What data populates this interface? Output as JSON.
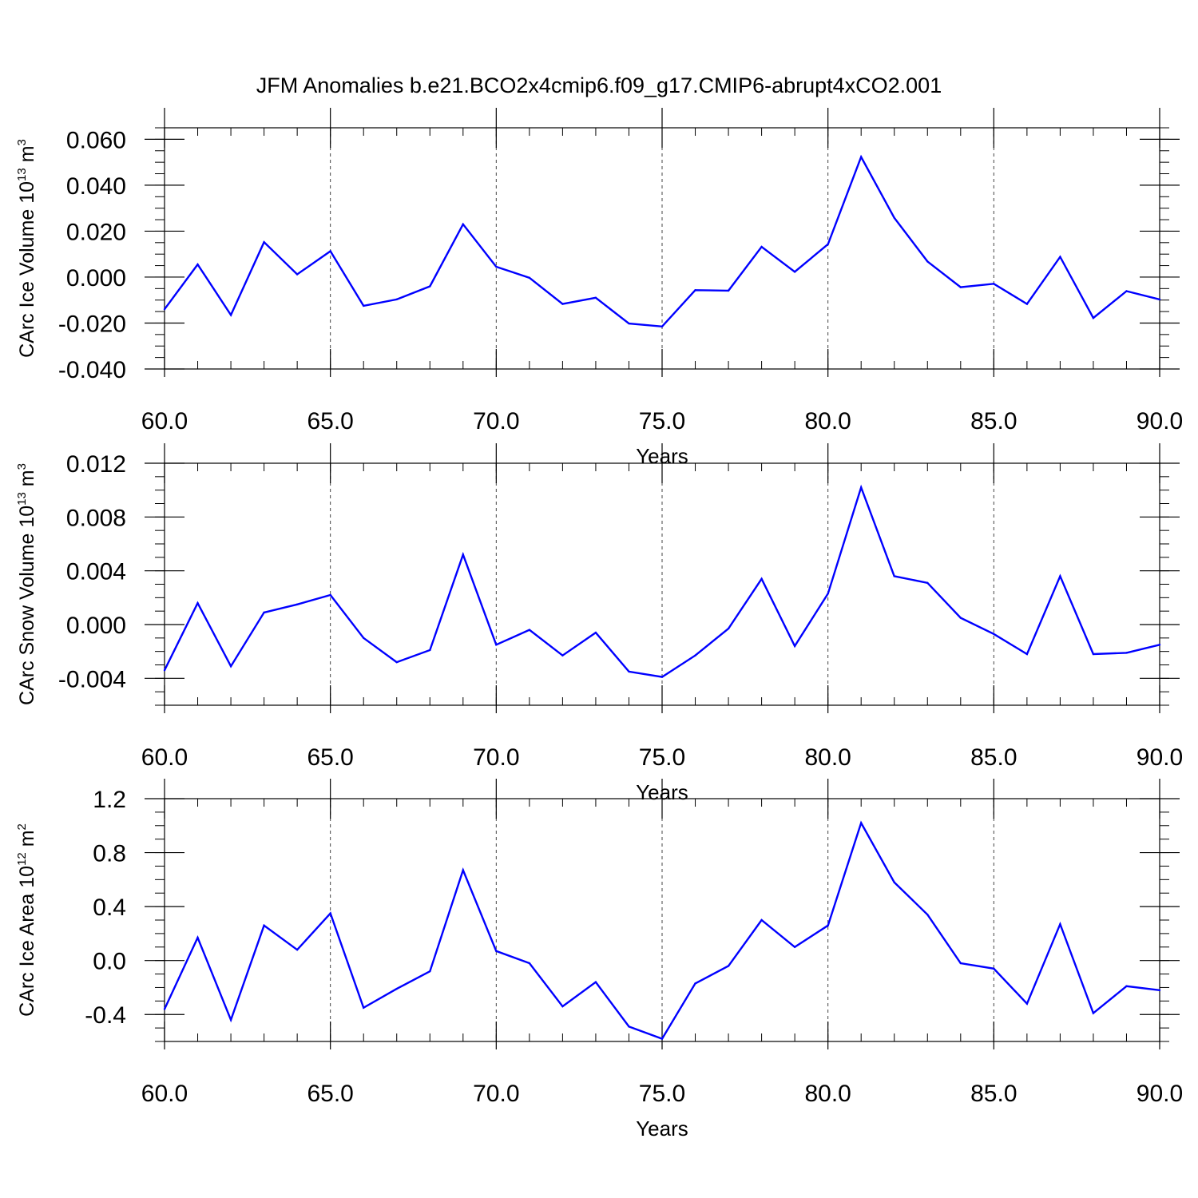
{
  "title": "JFM Anomalies b.e21.BCO2x4cmip6.f09_g17.CMIP6-abrupt4xCO2.001",
  "colors": {
    "series": "#0000ff",
    "axis": "#000000",
    "grid": "#444444"
  },
  "chart_data": [
    {
      "type": "line",
      "name": "ice-volume",
      "ylabel_main": "CArc Ice Volume 10",
      "ylabel_exp": "13",
      "ylabel_unit": " m",
      "ylabel_unit_exp": "3",
      "xlabel": "Years",
      "xlim": [
        60,
        90
      ],
      "ylim": [
        -0.04,
        0.065
      ],
      "yticks": [
        -0.04,
        -0.02,
        0.0,
        0.02,
        0.04,
        0.06
      ],
      "ytick_labels": [
        "-0.040",
        "-0.020",
        "0.000",
        "0.020",
        "0.040",
        "0.060"
      ],
      "yminor_step": 0.005,
      "xticks": [
        60,
        65,
        70,
        75,
        80,
        85,
        90
      ],
      "xtick_labels": [
        "60.0",
        "65.0",
        "70.0",
        "75.0",
        "80.0",
        "85.0",
        "90.0"
      ],
      "xminor_step": 1,
      "grid_x": [
        65,
        70,
        75,
        80,
        85
      ],
      "x": [
        60,
        61,
        62,
        63,
        64,
        65,
        66,
        67,
        68,
        69,
        70,
        71,
        72,
        73,
        74,
        75,
        76,
        77,
        78,
        79,
        80,
        81,
        82,
        83,
        84,
        85,
        86,
        87,
        88,
        89,
        90
      ],
      "values": [
        -0.014,
        0.0055,
        -0.0165,
        0.0152,
        0.0012,
        0.0113,
        -0.0125,
        -0.0097,
        -0.004,
        0.023,
        0.0045,
        -0.0003,
        -0.0117,
        -0.009,
        -0.0202,
        -0.0215,
        -0.0057,
        -0.0059,
        0.0132,
        0.0023,
        0.0143,
        0.0523,
        0.0258,
        0.0068,
        -0.0044,
        -0.0029,
        -0.0117,
        0.0088,
        -0.0178,
        -0.0061,
        -0.0097
      ]
    },
    {
      "type": "line",
      "name": "snow-volume",
      "ylabel_main": "CArc Snow Volume 10",
      "ylabel_exp": "13",
      "ylabel_unit": " m",
      "ylabel_unit_exp": "3",
      "xlabel": "Years",
      "xlim": [
        60,
        90
      ],
      "ylim": [
        -0.006,
        0.012
      ],
      "yticks": [
        -0.004,
        0.0,
        0.004,
        0.008,
        0.012
      ],
      "ytick_labels": [
        "-0.004",
        "0.000",
        "0.004",
        "0.008",
        "0.012"
      ],
      "yminor_step": 0.001,
      "xticks": [
        60,
        65,
        70,
        75,
        80,
        85,
        90
      ],
      "xtick_labels": [
        "60.0",
        "65.0",
        "70.0",
        "75.0",
        "80.0",
        "85.0",
        "90.0"
      ],
      "xminor_step": 1,
      "grid_x": [
        65,
        70,
        75,
        80,
        85
      ],
      "x": [
        60,
        61,
        62,
        63,
        64,
        65,
        66,
        67,
        68,
        69,
        70,
        71,
        72,
        73,
        74,
        75,
        76,
        77,
        78,
        79,
        80,
        81,
        82,
        83,
        84,
        85,
        86,
        87,
        88,
        89,
        90
      ],
      "values": [
        -0.0034,
        0.0016,
        -0.0031,
        0.0009,
        0.0015,
        0.0022,
        -0.001,
        -0.0028,
        -0.0019,
        0.0052,
        -0.0015,
        -0.0004,
        -0.0023,
        -0.0006,
        -0.0035,
        -0.0039,
        -0.0023,
        -0.0003,
        0.0034,
        -0.0016,
        0.0023,
        0.0102,
        0.0036,
        0.0031,
        0.0005,
        -0.0007,
        -0.0022,
        0.0036,
        -0.0022,
        -0.0021,
        -0.0015
      ]
    },
    {
      "type": "line",
      "name": "ice-area",
      "ylabel_main": "CArc Ice Area 10",
      "ylabel_exp": "12",
      "ylabel_unit": " m",
      "ylabel_unit_exp": "2",
      "xlabel": "Years",
      "xlim": [
        60,
        90
      ],
      "ylim": [
        -0.6,
        1.2
      ],
      "yticks": [
        -0.4,
        0.0,
        0.4,
        0.8,
        1.2
      ],
      "ytick_labels": [
        "-0.4",
        "0.0",
        "0.4",
        "0.8",
        "1.2"
      ],
      "yminor_step": 0.1,
      "xticks": [
        60,
        65,
        70,
        75,
        80,
        85,
        90
      ],
      "xtick_labels": [
        "60.0",
        "65.0",
        "70.0",
        "75.0",
        "80.0",
        "85.0",
        "90.0"
      ],
      "xminor_step": 1,
      "grid_x": [
        65,
        70,
        75,
        80,
        85
      ],
      "x": [
        60,
        61,
        62,
        63,
        64,
        65,
        66,
        67,
        68,
        69,
        70,
        71,
        72,
        73,
        74,
        75,
        76,
        77,
        78,
        79,
        80,
        81,
        82,
        83,
        84,
        85,
        86,
        87,
        88,
        89,
        90
      ],
      "values": [
        -0.36,
        0.17,
        -0.44,
        0.26,
        0.08,
        0.35,
        -0.35,
        -0.21,
        -0.08,
        0.67,
        0.07,
        -0.02,
        -0.34,
        -0.16,
        -0.49,
        -0.58,
        -0.17,
        -0.04,
        0.3,
        0.1,
        0.26,
        1.02,
        0.58,
        0.34,
        -0.02,
        -0.06,
        -0.32,
        0.27,
        -0.39,
        -0.19,
        -0.22
      ]
    }
  ]
}
